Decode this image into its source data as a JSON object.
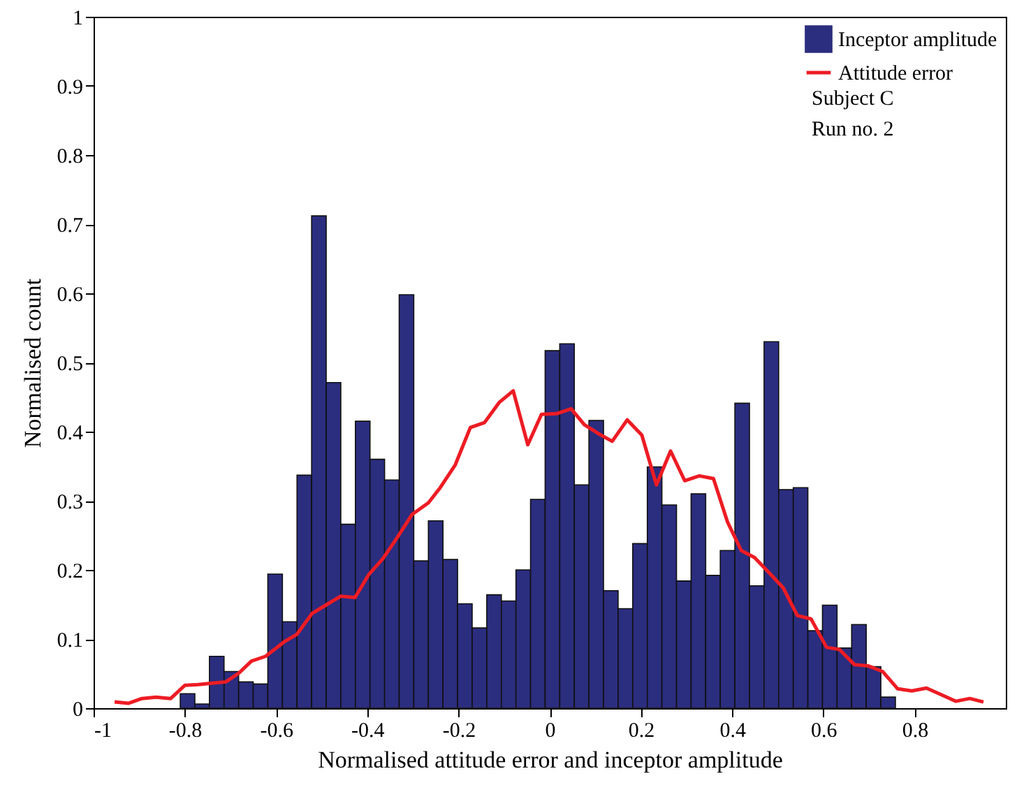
{
  "chart_data": {
    "type": "histogram",
    "xlabel": "Normalised attitude error and inceptor amplitude",
    "ylabel": "Normalised count",
    "xlim": [
      -1,
      1
    ],
    "xticks": [
      -1,
      -0.8,
      -0.6,
      -0.4,
      -0.2,
      0,
      0.2,
      0.4,
      0.6,
      0.8
    ],
    "ylim": [
      0,
      1
    ],
    "yticks": [
      0,
      0.1,
      0.2,
      0.3,
      0.4,
      0.5,
      0.6,
      0.7,
      0.8,
      0.9,
      1
    ],
    "grid": false,
    "legend": "top right",
    "annotations": [
      "Subject C",
      "Run no. 2"
    ],
    "series": [
      {
        "name": "Inceptor amplitude",
        "type": "histogram",
        "color": "#2b2d7f",
        "bins": [
          -0.81,
          -0.778,
          -0.746,
          -0.714,
          -0.682,
          -0.65,
          -0.618,
          -0.586,
          -0.554,
          -0.522,
          -0.49,
          -0.458,
          -0.426,
          -0.394,
          -0.362,
          -0.33,
          -0.298,
          -0.266,
          -0.234,
          -0.202,
          -0.17,
          -0.138,
          -0.106,
          -0.074,
          -0.042,
          -0.01,
          0.022,
          0.054,
          0.086,
          0.118,
          0.15,
          0.182,
          0.214,
          0.246,
          0.278,
          0.31,
          0.342,
          0.374,
          0.406,
          0.438,
          0.47,
          0.502,
          0.534,
          0.566,
          0.598,
          0.63,
          0.662,
          0.694,
          0.726,
          0.758
        ],
        "values": [
          0.021,
          0.006,
          0.075,
          0.053,
          0.038,
          0.035,
          0.194,
          0.125,
          0.337,
          0.712,
          0.471,
          0.266,
          0.415,
          0.36,
          0.33,
          0.598,
          0.213,
          0.271,
          0.215,
          0.151,
          0.116,
          0.164,
          0.155,
          0.2,
          0.302,
          0.517,
          0.527,
          0.323,
          0.416,
          0.17,
          0.144,
          0.238,
          0.349,
          0.294,
          0.184,
          0.31,
          0.192,
          0.228,
          0.441,
          0.177,
          0.53,
          0.316,
          0.319,
          0.112,
          0.149,
          0.087,
          0.121,
          0.06,
          0.016
        ]
      },
      {
        "name": "Attitude error",
        "type": "line",
        "color": "#ed1c24",
        "x": [
          -0.954,
          -0.924,
          -0.894,
          -0.863,
          -0.831,
          -0.8,
          -0.771,
          -0.741,
          -0.71,
          -0.681,
          -0.654,
          -0.623,
          -0.582,
          -0.554,
          -0.521,
          -0.491,
          -0.458,
          -0.427,
          -0.397,
          -0.366,
          -0.335,
          -0.302,
          -0.266,
          -0.24,
          -0.207,
          -0.174,
          -0.143,
          -0.111,
          -0.08,
          -0.048,
          -0.018,
          0.015,
          0.047,
          0.076,
          0.107,
          0.137,
          0.17,
          0.202,
          0.234,
          0.265,
          0.296,
          0.328,
          0.359,
          0.39,
          0.42,
          0.449,
          0.481,
          0.512,
          0.543,
          0.573,
          0.607,
          0.635,
          0.668,
          0.699,
          0.73,
          0.763,
          0.794,
          0.826,
          0.857,
          0.89,
          0.921,
          0.951
        ],
        "values": [
          0.009,
          0.007,
          0.014,
          0.016,
          0.014,
          0.033,
          0.034,
          0.036,
          0.038,
          0.051,
          0.068,
          0.075,
          0.096,
          0.107,
          0.137,
          0.149,
          0.162,
          0.16,
          0.193,
          0.216,
          0.246,
          0.28,
          0.297,
          0.319,
          0.352,
          0.406,
          0.413,
          0.442,
          0.459,
          0.381,
          0.425,
          0.426,
          0.433,
          0.41,
          0.397,
          0.386,
          0.417,
          0.395,
          0.323,
          0.372,
          0.329,
          0.336,
          0.332,
          0.269,
          0.228,
          0.218,
          0.196,
          0.174,
          0.134,
          0.129,
          0.088,
          0.085,
          0.063,
          0.061,
          0.053,
          0.028,
          0.025,
          0.029,
          0.02,
          0.01,
          0.014,
          0.009
        ]
      }
    ]
  }
}
